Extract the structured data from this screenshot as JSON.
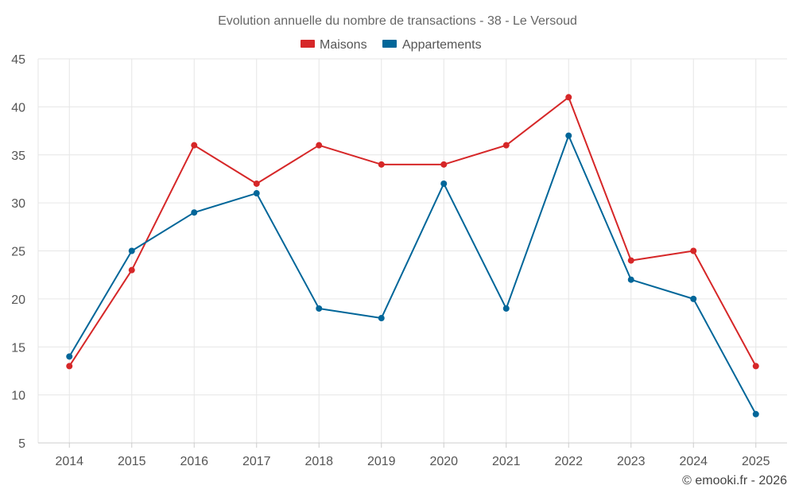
{
  "chart_data": {
    "type": "line",
    "title": "Evolution annuelle du nombre de transactions - 38 - Le Versoud",
    "categories": [
      "2014",
      "2015",
      "2016",
      "2017",
      "2018",
      "2019",
      "2020",
      "2021",
      "2022",
      "2023",
      "2024",
      "2025"
    ],
    "series": [
      {
        "name": "Maisons",
        "color": "#d62728",
        "values": [
          13,
          23,
          36,
          32,
          36,
          34,
          34,
          36,
          41,
          24,
          25,
          13
        ]
      },
      {
        "name": "Appartements",
        "color": "#006699",
        "values": [
          14,
          25,
          29,
          31,
          19,
          18,
          32,
          19,
          37,
          22,
          20,
          8
        ]
      }
    ],
    "ylim": [
      5,
      45
    ],
    "yticks": [
      5,
      10,
      15,
      20,
      25,
      30,
      35,
      40,
      45
    ],
    "grid": true,
    "legend_position": "top-center",
    "xlabel": "",
    "ylabel": ""
  },
  "credit": "© emooki.fr - 2026"
}
